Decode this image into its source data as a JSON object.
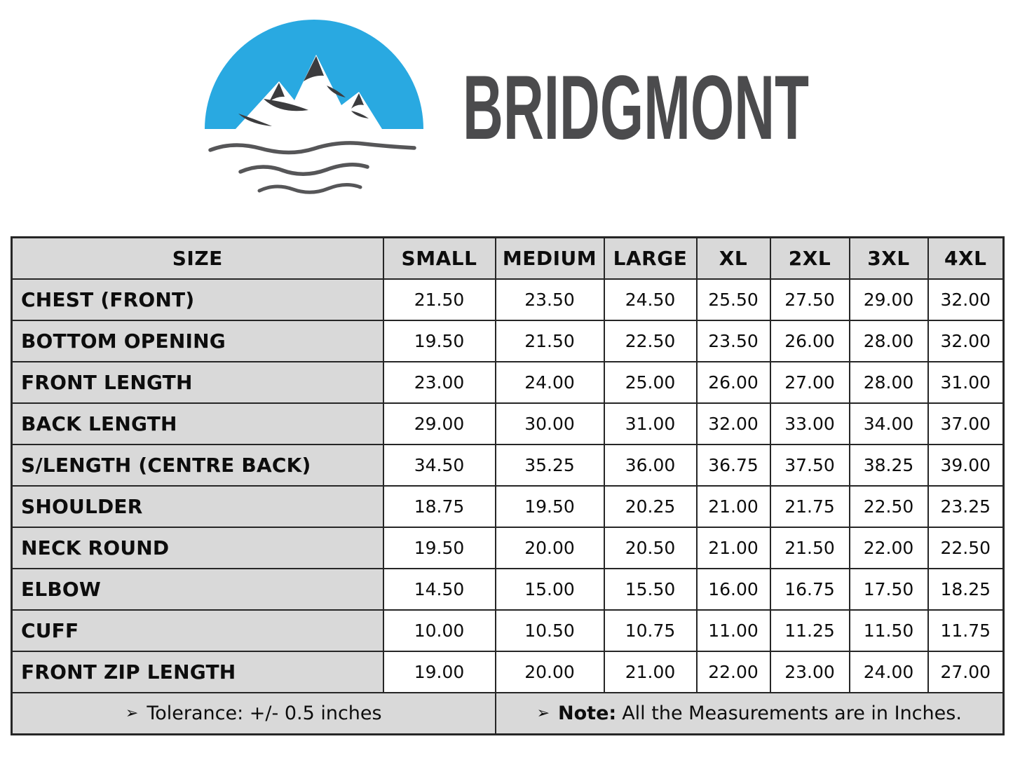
{
  "brand": {
    "name": "BRIDGMONT",
    "logo_blue": "#29a9e1",
    "logo_dark": "#4b4b4d",
    "wave_gray": "#565658"
  },
  "size_chart": {
    "columns": [
      "SIZE",
      "SMALL",
      "MEDIUM",
      "LARGE",
      "XL",
      "2XL",
      "3XL",
      "4XL"
    ],
    "rows": [
      {
        "label": "CHEST (FRONT)",
        "values": [
          "21.50",
          "23.50",
          "24.50",
          "25.50",
          "27.50",
          "29.00",
          "32.00"
        ]
      },
      {
        "label": "BOTTOM OPENING",
        "values": [
          "19.50",
          "21.50",
          "22.50",
          "23.50",
          "26.00",
          "28.00",
          "32.00"
        ]
      },
      {
        "label": "FRONT LENGTH",
        "values": [
          "23.00",
          "24.00",
          "25.00",
          "26.00",
          "27.00",
          "28.00",
          "31.00"
        ]
      },
      {
        "label": "BACK LENGTH",
        "values": [
          "29.00",
          "30.00",
          "31.00",
          "32.00",
          "33.00",
          "34.00",
          "37.00"
        ]
      },
      {
        "label": "S/LENGTH (CENTRE BACK)",
        "values": [
          "34.50",
          "35.25",
          "36.00",
          "36.75",
          "37.50",
          "38.25",
          "39.00"
        ]
      },
      {
        "label": "SHOULDER",
        "values": [
          "18.75",
          "19.50",
          "20.25",
          "21.00",
          "21.75",
          "22.50",
          "23.25"
        ]
      },
      {
        "label": "NECK ROUND",
        "values": [
          "19.50",
          "20.00",
          "20.50",
          "21.00",
          "21.50",
          "22.00",
          "22.50"
        ]
      },
      {
        "label": "ELBOW",
        "values": [
          "14.50",
          "15.00",
          "15.50",
          "16.00",
          "16.75",
          "17.50",
          "18.25"
        ]
      },
      {
        "label": "CUFF",
        "values": [
          "10.00",
          "10.50",
          "10.75",
          "11.00",
          "11.25",
          "11.50",
          "11.75"
        ]
      },
      {
        "label": "FRONT ZIP LENGTH",
        "values": [
          "19.00",
          "20.00",
          "21.00",
          "22.00",
          "23.00",
          "24.00",
          "27.00"
        ]
      }
    ],
    "footer": {
      "bullet": "➢",
      "tolerance": "Tolerance:  +/- 0.5 inches",
      "note_label": "Note:",
      "note_text": "All the Measurements are in Inches."
    }
  },
  "chart_data": {
    "type": "table",
    "title": "BRIDGMONT garment size chart (inches)",
    "columns": [
      "SIZE",
      "SMALL",
      "MEDIUM",
      "LARGE",
      "XL",
      "2XL",
      "3XL",
      "4XL"
    ],
    "rows": [
      [
        "CHEST (FRONT)",
        21.5,
        23.5,
        24.5,
        25.5,
        27.5,
        29.0,
        32.0
      ],
      [
        "BOTTOM OPENING",
        19.5,
        21.5,
        22.5,
        23.5,
        26.0,
        28.0,
        32.0
      ],
      [
        "FRONT LENGTH",
        23.0,
        24.0,
        25.0,
        26.0,
        27.0,
        28.0,
        31.0
      ],
      [
        "BACK LENGTH",
        29.0,
        30.0,
        31.0,
        32.0,
        33.0,
        34.0,
        37.0
      ],
      [
        "S/LENGTH (CENTRE BACK)",
        34.5,
        35.25,
        36.0,
        36.75,
        37.5,
        38.25,
        39.0
      ],
      [
        "SHOULDER",
        18.75,
        19.5,
        20.25,
        21.0,
        21.75,
        22.5,
        23.25
      ],
      [
        "NECK ROUND",
        19.5,
        20.0,
        20.5,
        21.0,
        21.5,
        22.0,
        22.5
      ],
      [
        "ELBOW",
        14.5,
        15.0,
        15.5,
        16.0,
        16.75,
        17.5,
        18.25
      ],
      [
        "CUFF",
        10.0,
        10.5,
        10.75,
        11.0,
        11.25,
        11.5,
        11.75
      ],
      [
        "FRONT ZIP LENGTH",
        19.0,
        20.0,
        21.0,
        22.0,
        23.0,
        24.0,
        27.0
      ]
    ],
    "notes": [
      "Tolerance: +/- 0.5 inches",
      "Note: All the Measurements are in Inches."
    ]
  }
}
